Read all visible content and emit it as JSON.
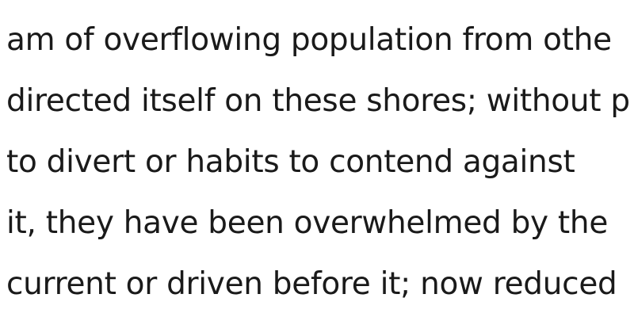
{
  "document": {
    "lines": [
      "am of overflowing population from othe",
      "directed itself on these shores; without p",
      "to divert or habits to contend against",
      "it, they have been overwhelmed by the",
      "current or driven before it; now reduced"
    ]
  }
}
